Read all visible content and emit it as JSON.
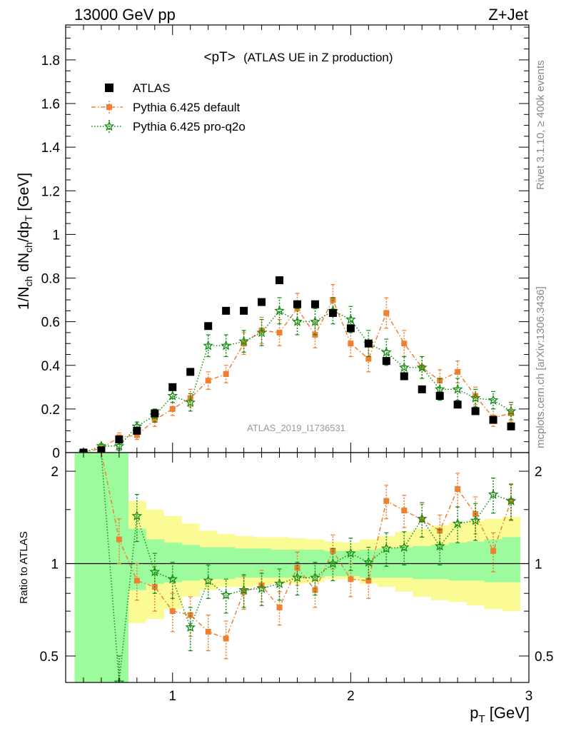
{
  "header": {
    "left": "13000 GeV pp",
    "right": "Z+Jet"
  },
  "side_labels": {
    "top": "Rivet 3.1.10, ≥ 400k events",
    "bottom": "mcplots.cern.ch [arXiv:1306.3436]"
  },
  "watermark": "ATLAS_2019_I1736531",
  "colors": {
    "atlas": "#000000",
    "default": "#f08030",
    "proq2o": "#148c14",
    "band_inner": "#9cfb9c",
    "band_outer": "#fbfb96"
  },
  "chart_data": [
    {
      "type": "scatter",
      "title": "<pT>",
      "subtitle": "(ATLAS UE in Z production)",
      "ylabel": "1/N_ch dN_ch/dp_T [GeV]",
      "xlim": [
        0.4,
        3.0
      ],
      "ylim": [
        0,
        1.96
      ],
      "yticks": [
        0,
        0.2,
        0.4,
        0.6,
        0.8,
        1,
        1.2,
        1.4,
        1.6,
        1.8
      ],
      "ytick_labels": [
        "0",
        "0.2",
        "0.4",
        "0.6",
        "0.8",
        "1",
        "1.2",
        "1.4",
        "1.6",
        "1.8"
      ],
      "x": [
        0.5,
        0.6,
        0.7,
        0.8,
        0.9,
        1.0,
        1.1,
        1.2,
        1.3,
        1.4,
        1.5,
        1.6,
        1.7,
        1.8,
        1.9,
        2.0,
        2.1,
        2.2,
        2.3,
        2.4,
        2.5,
        2.6,
        2.7,
        2.8,
        2.9
      ],
      "legend": {
        "position": "top-left"
      },
      "series": [
        {
          "name": "ATLAS",
          "marker": "square",
          "values": [
            0.0,
            0.01,
            0.06,
            0.1,
            0.18,
            0.3,
            0.37,
            0.58,
            0.65,
            0.65,
            0.69,
            0.79,
            0.68,
            0.68,
            0.64,
            0.57,
            0.5,
            0.42,
            0.35,
            0.29,
            0.26,
            0.22,
            0.19,
            0.15,
            0.12
          ]
        },
        {
          "name": "Pythia 6.425 default",
          "marker": "square-small",
          "line": "dash-dot",
          "values": [
            0.0,
            0.02,
            0.07,
            0.08,
            0.15,
            0.2,
            0.25,
            0.33,
            0.36,
            0.5,
            0.56,
            0.55,
            0.66,
            0.54,
            0.7,
            0.5,
            0.43,
            0.64,
            0.5,
            0.39,
            0.33,
            0.37,
            0.26,
            0.16,
            0.18
          ],
          "errors": [
            0.0,
            0.01,
            0.02,
            0.02,
            0.03,
            0.03,
            0.04,
            0.04,
            0.04,
            0.05,
            0.06,
            0.06,
            0.07,
            0.06,
            0.07,
            0.06,
            0.06,
            0.07,
            0.06,
            0.05,
            0.05,
            0.05,
            0.04,
            0.04,
            0.04
          ]
        },
        {
          "name": "Pythia 6.425 pro-q2o",
          "marker": "star",
          "line": "dotted",
          "values": [
            0.0,
            0.03,
            0.03,
            0.12,
            0.17,
            0.26,
            0.23,
            0.49,
            0.49,
            0.51,
            0.55,
            0.65,
            0.6,
            0.6,
            0.65,
            0.61,
            0.5,
            0.46,
            0.39,
            0.39,
            0.29,
            0.29,
            0.25,
            0.24,
            0.19
          ],
          "errors": [
            0.0,
            0.01,
            0.02,
            0.02,
            0.03,
            0.03,
            0.04,
            0.05,
            0.05,
            0.05,
            0.06,
            0.06,
            0.06,
            0.06,
            0.06,
            0.06,
            0.06,
            0.06,
            0.05,
            0.05,
            0.05,
            0.05,
            0.04,
            0.04,
            0.04
          ]
        }
      ]
    },
    {
      "type": "scatter",
      "ylabel": "Ratio to ATLAS",
      "xlabel": "p_T [GeV]",
      "xlim": [
        0.4,
        3.0
      ],
      "ylim": [
        0.41,
        2.3
      ],
      "log_y": true,
      "yticks": [
        0.5,
        1,
        2
      ],
      "ytick_labels": [
        "0.5",
        "1",
        "2"
      ],
      "xticks": [
        1,
        2,
        3
      ],
      "xtick_labels": [
        "1",
        "2",
        "3"
      ],
      "bands": {
        "edges": [
          0.45,
          0.65,
          0.75,
          0.85,
          0.95,
          1.05,
          1.15,
          1.25,
          1.35,
          1.45,
          1.55,
          1.65,
          1.75,
          1.85,
          1.95,
          2.05,
          2.15,
          2.25,
          2.35,
          2.45,
          2.55,
          2.65,
          2.75,
          2.85,
          2.95
        ],
        "inner_lo": [
          0.41,
          0.41,
          0.82,
          0.86,
          0.87,
          0.88,
          0.89,
          0.89,
          0.9,
          0.9,
          0.9,
          0.9,
          0.9,
          0.91,
          0.91,
          0.9,
          0.9,
          0.9,
          0.89,
          0.89,
          0.88,
          0.88,
          0.87,
          0.87
        ],
        "inner_hi": [
          2.3,
          2.3,
          1.3,
          1.2,
          1.17,
          1.15,
          1.13,
          1.13,
          1.12,
          1.12,
          1.11,
          1.11,
          1.11,
          1.1,
          1.1,
          1.11,
          1.12,
          1.13,
          1.14,
          1.15,
          1.17,
          1.18,
          1.2,
          1.22
        ],
        "outer_lo": [
          0.41,
          0.41,
          0.64,
          0.66,
          0.71,
          0.78,
          0.82,
          0.84,
          0.84,
          0.85,
          0.86,
          0.86,
          0.87,
          0.89,
          0.89,
          0.86,
          0.84,
          0.81,
          0.78,
          0.76,
          0.75,
          0.73,
          0.71,
          0.7
        ],
        "outer_hi": [
          2.3,
          2.3,
          1.6,
          1.5,
          1.43,
          1.35,
          1.28,
          1.25,
          1.23,
          1.22,
          1.22,
          1.21,
          1.2,
          1.18,
          1.17,
          1.2,
          1.23,
          1.27,
          1.3,
          1.33,
          1.36,
          1.38,
          1.4,
          1.42
        ]
      },
      "x": [
        0.7,
        0.8,
        0.9,
        1.0,
        1.1,
        1.2,
        1.3,
        1.4,
        1.5,
        1.6,
        1.7,
        1.8,
        1.9,
        2.0,
        2.1,
        2.2,
        2.3,
        2.4,
        2.5,
        2.6,
        2.7,
        2.8,
        2.9
      ],
      "series": [
        {
          "name": "Pythia 6.425 default",
          "values": [
            1.2,
            0.88,
            0.84,
            0.7,
            0.68,
            0.6,
            0.57,
            0.81,
            0.85,
            0.72,
            0.97,
            0.82,
            1.1,
            0.89,
            0.88,
            1.6,
            1.49,
            1.39,
            1.28,
            1.75,
            1.45,
            1.1,
            1.6
          ],
          "errors": [
            0.2,
            0.12,
            0.14,
            0.1,
            0.1,
            0.08,
            0.08,
            0.1,
            0.1,
            0.09,
            0.12,
            0.1,
            0.14,
            0.11,
            0.11,
            0.2,
            0.18,
            0.17,
            0.16,
            0.22,
            0.2,
            0.16,
            0.22
          ]
        },
        {
          "name": "Pythia 6.425 pro-q2o",
          "values": [
            0.4,
            1.43,
            0.94,
            0.89,
            0.62,
            0.88,
            0.79,
            0.82,
            0.83,
            0.86,
            0.9,
            0.9,
            1.0,
            1.08,
            1.01,
            1.12,
            1.13,
            1.4,
            1.14,
            1.35,
            1.38,
            1.68,
            1.6
          ],
          "errors": [
            0.1,
            0.25,
            0.14,
            0.12,
            0.1,
            0.11,
            0.1,
            0.1,
            0.1,
            0.1,
            0.11,
            0.11,
            0.12,
            0.13,
            0.12,
            0.14,
            0.14,
            0.18,
            0.15,
            0.18,
            0.19,
            0.22,
            0.21
          ]
        }
      ]
    }
  ]
}
